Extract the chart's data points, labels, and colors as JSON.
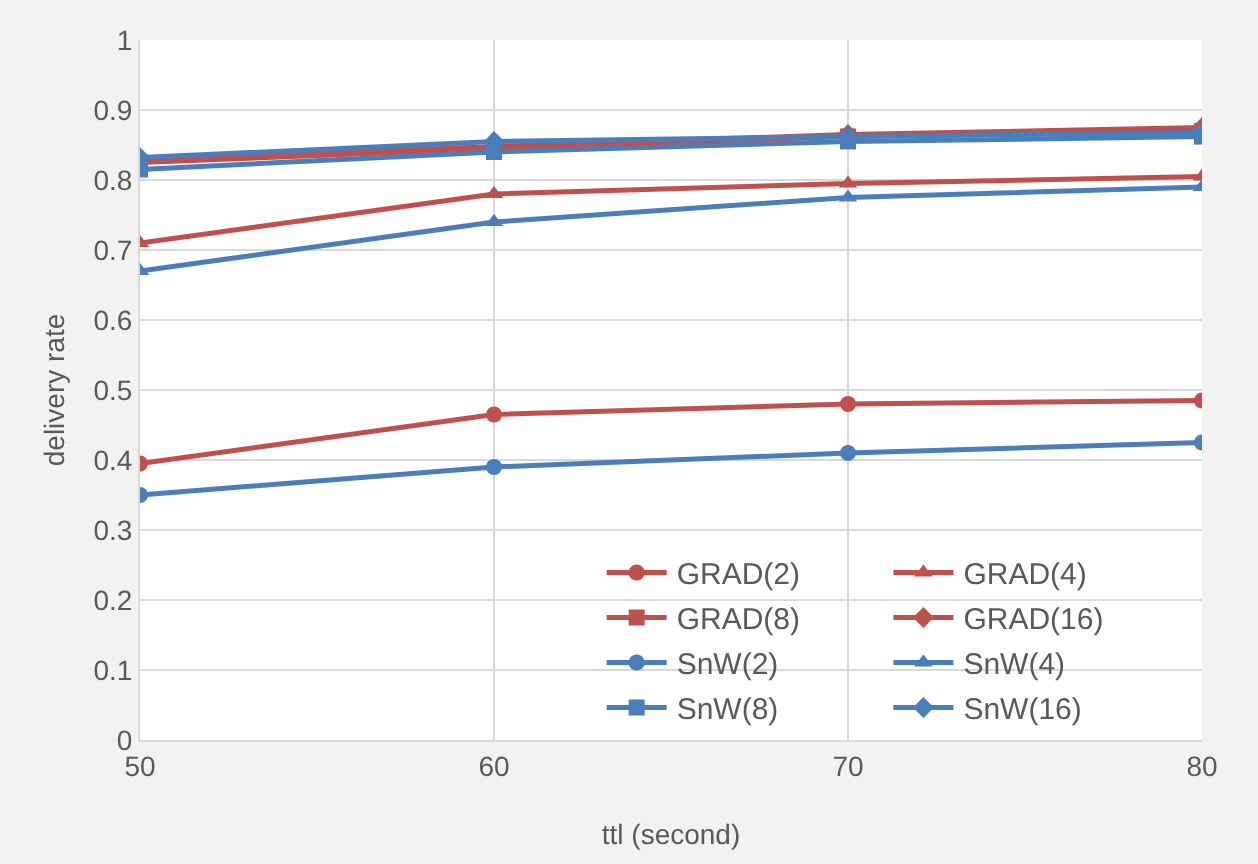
{
  "chart_data": {
    "type": "line",
    "xlabel": "ttl (second)",
    "ylabel": "delivery rate",
    "x": [
      50,
      60,
      70,
      80
    ],
    "xlim": [
      50,
      80
    ],
    "xticks": [
      50,
      60,
      70,
      80
    ],
    "ylim": [
      0,
      1
    ],
    "yticks": [
      0,
      0.1,
      0.2,
      0.3,
      0.4,
      0.5,
      0.6,
      0.7,
      0.8,
      0.9,
      1
    ],
    "grid": true,
    "legend": "bottom right",
    "line_style": "solid",
    "series": [
      {
        "name": "GRAD(2)",
        "color": "#c0504d",
        "marker": "circle",
        "values": [
          0.395,
          0.465,
          0.48,
          0.485
        ]
      },
      {
        "name": "GRAD(4)",
        "color": "#c0504d",
        "marker": "triangle",
        "values": [
          0.71,
          0.78,
          0.795,
          0.805
        ]
      },
      {
        "name": "GRAD(8)",
        "color": "#c0504d",
        "marker": "cross",
        "values": [
          0.825,
          0.845,
          0.862,
          0.87
        ]
      },
      {
        "name": "GRAD(16)",
        "color": "#c0504d",
        "marker": "diamond",
        "values": [
          0.828,
          0.848,
          0.865,
          0.875
        ]
      },
      {
        "name": "SnW(2)",
        "color": "#4a7ebb",
        "marker": "circle",
        "values": [
          0.35,
          0.39,
          0.41,
          0.425
        ]
      },
      {
        "name": "SnW(4)",
        "color": "#4a7ebb",
        "marker": "triangle",
        "values": [
          0.67,
          0.74,
          0.775,
          0.79
        ]
      },
      {
        "name": "SnW(8)",
        "color": "#4a7ebb",
        "marker": "square",
        "values": [
          0.815,
          0.84,
          0.855,
          0.862
        ]
      },
      {
        "name": "SnW(16)",
        "color": "#4a7ebb",
        "marker": "diamond",
        "values": [
          0.832,
          0.855,
          0.862,
          0.868
        ]
      }
    ]
  }
}
